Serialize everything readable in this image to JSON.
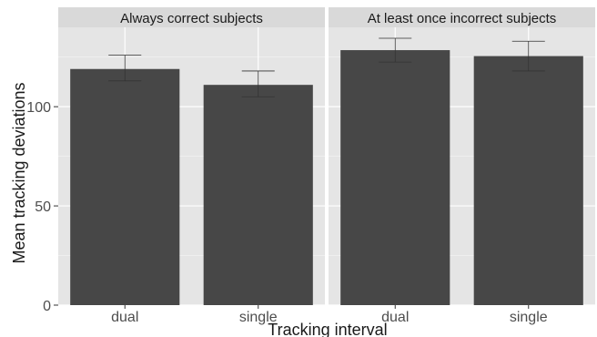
{
  "chart_data": {
    "type": "bar",
    "xlabel": "Tracking interval",
    "ylabel": "Mean tracking deviations",
    "ylim": [
      0,
      140
    ],
    "yticks": [
      0,
      50,
      100
    ],
    "grid": true,
    "error_bars": true,
    "colors": {
      "panel_bg": "#e5e5e5",
      "strip_bg": "#d9d9d9",
      "gridline": "#ffffff",
      "bar": "#474747",
      "errorbar": "#333333",
      "text": "#1a1a1a"
    },
    "facets": [
      {
        "label": "Always correct subjects",
        "categories": [
          "dual",
          "single"
        ],
        "values": [
          119,
          111
        ],
        "error_low": [
          113,
          105
        ],
        "error_high": [
          126,
          118
        ]
      },
      {
        "label": "At least once incorrect subjects",
        "categories": [
          "dual",
          "single"
        ],
        "values": [
          128.5,
          125.5
        ],
        "error_low": [
          122.5,
          118
        ],
        "error_high": [
          134.5,
          133
        ]
      }
    ]
  }
}
